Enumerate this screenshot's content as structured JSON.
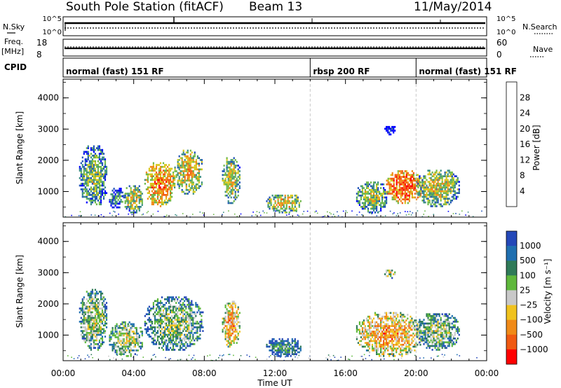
{
  "header": {
    "title": "South Pole Station (fitACF)",
    "beam": "Beam 13",
    "date": "11/May/2014"
  },
  "summary_panels": {
    "nsky_label": "N.Sky",
    "nsky_ticks": [
      "10^5",
      "10^0"
    ],
    "nsearch_label": "N.Search",
    "nsearch_ticks": [
      "10^5",
      "10^0"
    ],
    "freq_label": "Freq.",
    "freq_unit": "[MHz]",
    "freq_ticks": [
      "18",
      "8"
    ],
    "nave_label": "Nave",
    "nave_ticks": [
      "60",
      "0"
    ],
    "cpid_label": "CPID",
    "cpid_segments": [
      {
        "label": "normal (fast) 151 RF",
        "start_h": 0,
        "end_h": 14
      },
      {
        "label": "rbsp 200 RF",
        "start_h": 14,
        "end_h": 20
      },
      {
        "label": "normal (fast) 151 RF",
        "start_h": 20,
        "end_h": 24
      }
    ]
  },
  "chart_data": [
    {
      "type": "heatmap",
      "name": "power",
      "ylabel": "Slant Range [km]",
      "ylim": [
        180,
        4600
      ],
      "yticks": [
        "1000",
        "2000",
        "3000",
        "4000"
      ],
      "colorbar_label": "Power [dB]",
      "colorbar_ticks": [
        "4",
        "8",
        "12",
        "16",
        "20",
        "24",
        "28"
      ],
      "colorbar_colors": [
        "#0000ff",
        "#1f52b8",
        "#3c8f84",
        "#6eb84a",
        "#d8c81e",
        "#f08a18",
        "#f25a12",
        "#ff0000"
      ],
      "regions": [
        {
          "x": [
            0.9,
            2.5
          ],
          "y": [
            500,
            2450
          ],
          "level": 0.45
        },
        {
          "x": [
            2.6,
            3.4
          ],
          "y": [
            400,
            1100
          ],
          "level": 0.35
        },
        {
          "x": [
            3.4,
            4.5
          ],
          "y": [
            300,
            1200
          ],
          "level": 0.55
        },
        {
          "x": [
            4.6,
            6.3
          ],
          "y": [
            500,
            1900
          ],
          "level": 0.75
        },
        {
          "x": [
            6.3,
            7.9
          ],
          "y": [
            900,
            2300
          ],
          "level": 0.6
        },
        {
          "x": [
            9.0,
            10.0
          ],
          "y": [
            600,
            2100
          ],
          "level": 0.55
        },
        {
          "x": [
            11.5,
            13.5
          ],
          "y": [
            300,
            900
          ],
          "level": 0.6
        },
        {
          "x": [
            16.6,
            18.4
          ],
          "y": [
            300,
            1300
          ],
          "level": 0.5
        },
        {
          "x": [
            18.3,
            20.3
          ],
          "y": [
            600,
            1650
          ],
          "level": 0.85
        },
        {
          "x": [
            20.0,
            22.4
          ],
          "y": [
            500,
            1700
          ],
          "level": 0.55
        },
        {
          "x": [
            18.2,
            18.8
          ],
          "y": [
            2800,
            3100
          ],
          "level": 0.1
        }
      ]
    },
    {
      "type": "heatmap",
      "name": "velocity",
      "ylabel": "Slant Range [km]",
      "ylim": [
        180,
        4600
      ],
      "yticks": [
        "1000",
        "2000",
        "3000",
        "4000"
      ],
      "xlabel": "Time UT",
      "xticks": [
        "00:00",
        "04:00",
        "08:00",
        "12:00",
        "16:00",
        "20:00",
        "00:00"
      ],
      "colorbar_label": "Velocity [m s⁻¹]",
      "colorbar_ticks": [
        "1000",
        "500",
        "100",
        "25",
        "−25",
        "−100",
        "−500",
        "−1000"
      ],
      "colorbar_colors": [
        "#2448b8",
        "#1f6fb0",
        "#2f7a58",
        "#5fb83c",
        "#c8c8c8",
        "#f0c21e",
        "#f08a18",
        "#f05a12",
        "#ff0000"
      ],
      "regions": [
        {
          "x": [
            0.9,
            2.5
          ],
          "y": [
            500,
            2450
          ],
          "level": 0.5
        },
        {
          "x": [
            2.6,
            4.5
          ],
          "y": [
            300,
            1400
          ],
          "level": 0.5
        },
        {
          "x": [
            4.6,
            7.9
          ],
          "y": [
            500,
            2200
          ],
          "level": 0.45
        },
        {
          "x": [
            9.0,
            10.0
          ],
          "y": [
            600,
            2100
          ],
          "level": 0.7
        },
        {
          "x": [
            11.5,
            13.5
          ],
          "y": [
            300,
            900
          ],
          "level": 0.3
        },
        {
          "x": [
            16.6,
            20.3
          ],
          "y": [
            300,
            1700
          ],
          "level": 0.7
        },
        {
          "x": [
            20.0,
            22.4
          ],
          "y": [
            500,
            1700
          ],
          "level": 0.45
        },
        {
          "x": [
            18.2,
            18.8
          ],
          "y": [
            2800,
            3100
          ],
          "level": 0.55
        }
      ]
    }
  ]
}
